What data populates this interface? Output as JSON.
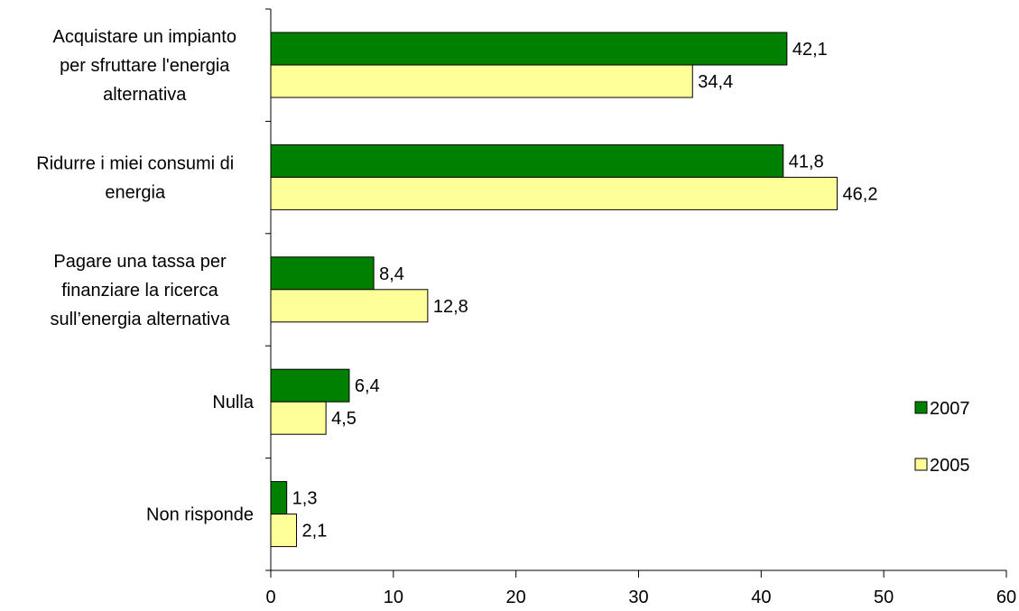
{
  "chart_data": {
    "type": "bar",
    "orientation": "horizontal",
    "categories": [
      [
        "Acquistare un impianto",
        "per sfruttare l'energia",
        "alternativa"
      ],
      [
        "Ridurre i miei consumi di",
        "energia"
      ],
      [
        "Pagare una tassa per",
        "finanziare la ricerca",
        "sull’energia alternativa"
      ],
      [
        "Nulla"
      ],
      [
        "Non risponde"
      ]
    ],
    "series": [
      {
        "name": "2007",
        "values": [
          42.1,
          41.8,
          8.4,
          6.4,
          1.3
        ],
        "labels": [
          "42,1",
          "41,8",
          "8,4",
          "6,4",
          "1,3"
        ],
        "color": "#008000"
      },
      {
        "name": "2005",
        "values": [
          34.4,
          46.2,
          12.8,
          4.5,
          2.1
        ],
        "labels": [
          "34,4",
          "46,2",
          "12,8",
          "4,5",
          "2,1"
        ],
        "color": "#FFFF99"
      }
    ],
    "xlim": [
      0,
      60
    ],
    "xticks": [
      "0",
      "10",
      "20",
      "30",
      "40",
      "50",
      "60"
    ],
    "grid": false,
    "legend_position": "right"
  }
}
